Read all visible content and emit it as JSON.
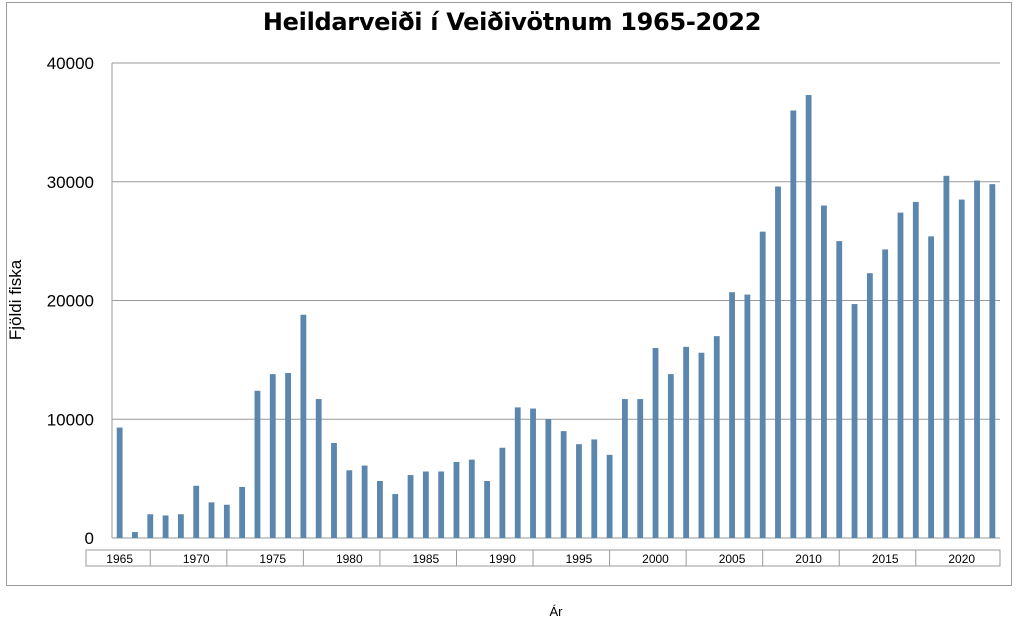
{
  "chart_data": {
    "type": "bar",
    "title": "Heildarveiði í Veiðivötnum 1965-2022",
    "xlabel": "Ár",
    "ylabel": "Fjöldi fiska",
    "ylim": [
      0,
      40000
    ],
    "yticks": [
      0,
      10000,
      20000,
      30000,
      40000
    ],
    "grid": true,
    "color": "#5b86ae",
    "xtick_labels": [
      "1965",
      "1970",
      "1975",
      "1980",
      "1985",
      "1990",
      "1995",
      "2000",
      "2005",
      "2010",
      "2015",
      "2020"
    ],
    "categories": [
      1965,
      1966,
      1967,
      1968,
      1969,
      1970,
      1971,
      1972,
      1973,
      1974,
      1975,
      1976,
      1977,
      1978,
      1979,
      1980,
      1981,
      1982,
      1983,
      1984,
      1985,
      1986,
      1987,
      1988,
      1989,
      1990,
      1991,
      1992,
      1993,
      1994,
      1995,
      1996,
      1997,
      1998,
      1999,
      2000,
      2001,
      2002,
      2003,
      2004,
      2005,
      2006,
      2007,
      2008,
      2009,
      2010,
      2011,
      2012,
      2013,
      2014,
      2015,
      2016,
      2017,
      2018,
      2019,
      2020,
      2021,
      2022
    ],
    "values": [
      9300,
      500,
      2000,
      1900,
      2000,
      4400,
      3000,
      2800,
      4300,
      12400,
      13800,
      13900,
      18800,
      11700,
      8000,
      5700,
      6100,
      4800,
      3700,
      5300,
      5600,
      5600,
      6400,
      6600,
      4800,
      7600,
      11000,
      10900,
      10000,
      9000,
      7900,
      8300,
      7000,
      11700,
      11700,
      16000,
      13800,
      16100,
      15600,
      17000,
      20700,
      20500,
      25800,
      29600,
      36000,
      37300,
      28000,
      25000,
      19700,
      22300,
      24300,
      27400,
      28300,
      25400,
      30500,
      28500,
      30100,
      29800
    ]
  }
}
